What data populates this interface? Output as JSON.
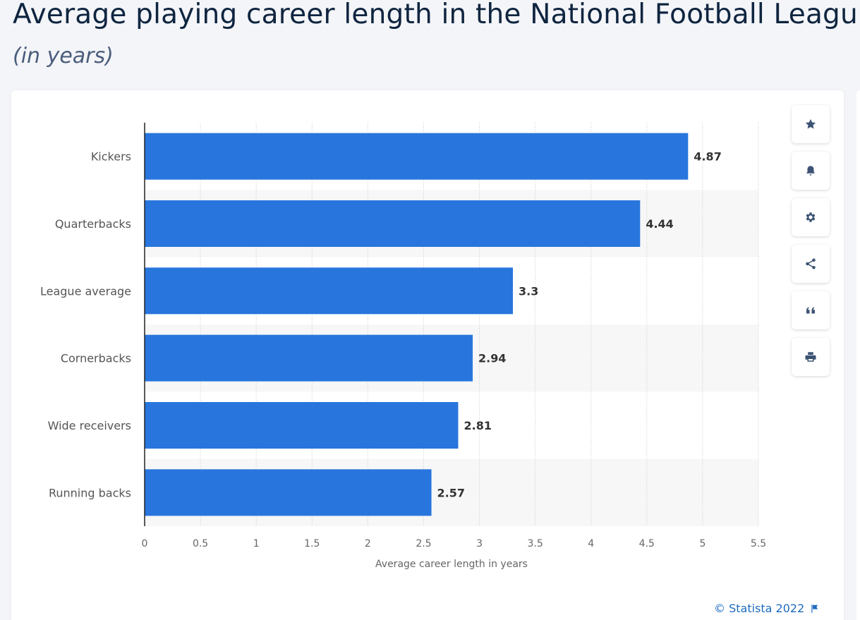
{
  "header": {
    "title": "Average playing career length in the National Football League",
    "subtitle": "(in years)"
  },
  "toolbar": {
    "buttons": [
      {
        "name": "favorite",
        "icon": "star-icon"
      },
      {
        "name": "notification",
        "icon": "bell-icon"
      },
      {
        "name": "settings",
        "icon": "gear-icon"
      },
      {
        "name": "share",
        "icon": "share-icon"
      },
      {
        "name": "cite",
        "icon": "quote-icon"
      },
      {
        "name": "print",
        "icon": "print-icon"
      }
    ]
  },
  "footer": {
    "copyright": "© Statista 2022",
    "flag_icon": "flag-icon"
  },
  "colors": {
    "bar": "#2876dd",
    "title": "#0f2540",
    "link": "#1d6bbf",
    "band": "#f7f7f7"
  },
  "chart_data": {
    "type": "bar",
    "orientation": "horizontal",
    "categories": [
      "Kickers",
      "Quarterbacks",
      "League average",
      "Cornerbacks",
      "Wide receivers",
      "Running backs"
    ],
    "values": [
      4.87,
      4.44,
      3.3,
      2.94,
      2.81,
      2.57
    ],
    "value_labels": [
      "4.87",
      "4.44",
      "3.3",
      "2.94",
      "2.81",
      "2.57"
    ],
    "xlabel": "Average career length in years",
    "ylabel": "",
    "xlim": [
      0,
      5.5
    ],
    "x_ticks": [
      "0",
      "0.5",
      "1",
      "1.5",
      "2",
      "2.5",
      "3",
      "3.5",
      "4",
      "4.5",
      "5",
      "5.5"
    ],
    "x_tick_values": [
      0,
      0.5,
      1,
      1.5,
      2,
      2.5,
      3,
      3.5,
      4,
      4.5,
      5,
      5.5
    ],
    "grid": "vertical dotted",
    "alternating_row_bands": true
  }
}
